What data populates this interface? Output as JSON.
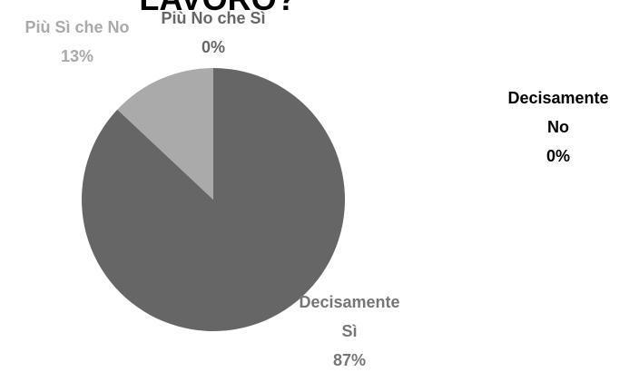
{
  "chart_data": {
    "type": "pie",
    "title": "LAVORO?",
    "categories": [
      "Decisamente Sì",
      "Più Sì che No",
      "Più No che Sì",
      "Decisamente No"
    ],
    "values": [
      87,
      13,
      0,
      0
    ],
    "value_labels": [
      "87%",
      "13%",
      "0%",
      "0%"
    ],
    "colors": [
      "#666666",
      "#aaaaaa",
      "#555555",
      "#000000"
    ],
    "label_colors": [
      "#767676",
      "#aaaaaa",
      "#666666",
      "#000000"
    ]
  }
}
